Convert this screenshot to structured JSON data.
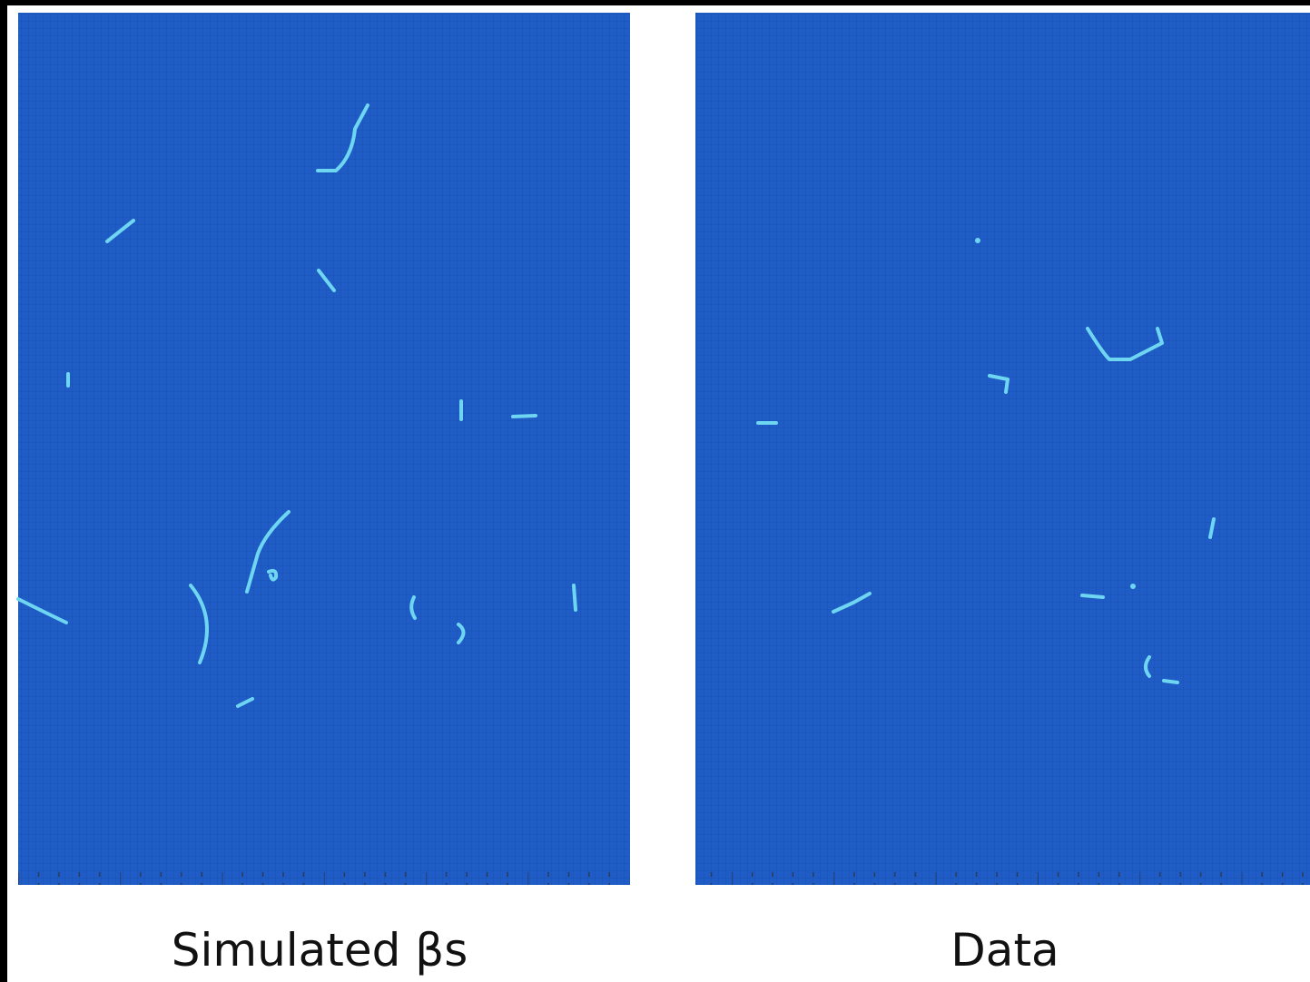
{
  "panels": [
    {
      "caption": "Simulated βs"
    },
    {
      "caption": "Data"
    }
  ]
}
